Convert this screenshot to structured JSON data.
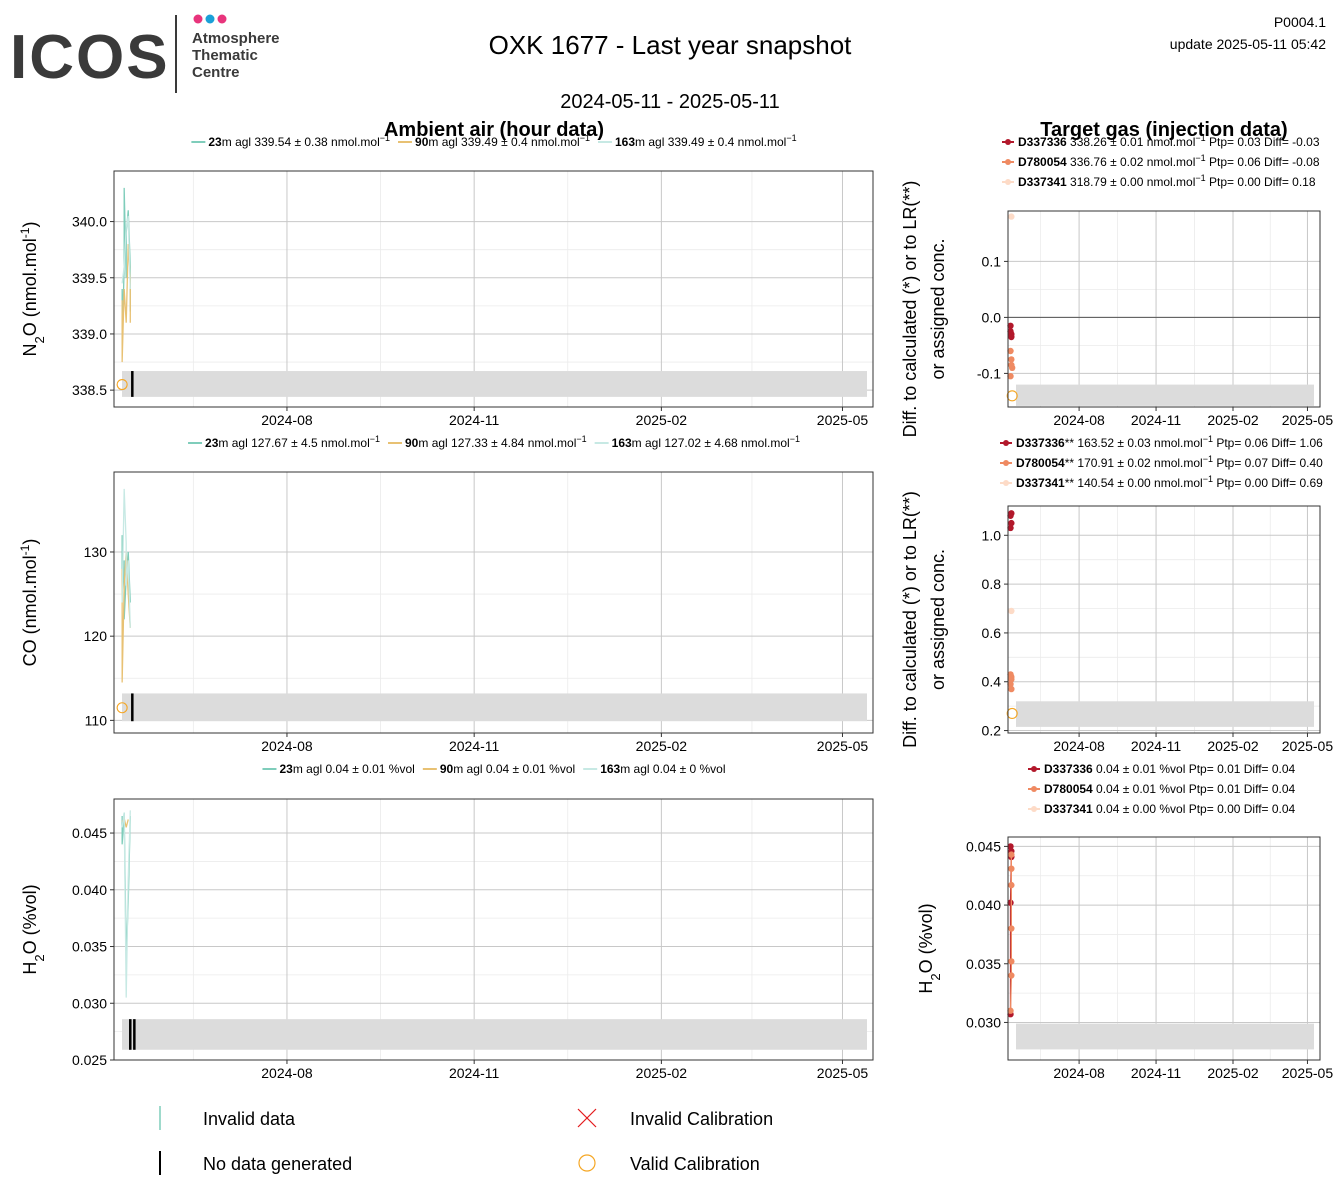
{
  "header": {
    "logo_text": "ICOS",
    "logo_lines": [
      "Atmosphere",
      "Thematic",
      "Centre"
    ],
    "logo_dot_colors": [
      "#e8347c",
      "#1aa0d8",
      "#e8347c"
    ],
    "title": "OXK 1677 - Last year snapshot",
    "date_range": "2024-05-11 - 2025-05-11",
    "code": "P0004.1",
    "update": "update  2025-05-11 05:42"
  },
  "section_titles": {
    "ambient": "Ambient air (hour data)",
    "target": "Target gas (injection data)"
  },
  "colors": {
    "h23": "#7fcdbb",
    "h90": "#e8c173",
    "h163": "#c7e9e4",
    "d337336": "#b2182b",
    "d780054": "#ef8a62",
    "d337341": "#fddbc7",
    "band": "#dcdcdc",
    "valid_cal": "#f5a623",
    "invalid_cal": "#e41a1c"
  },
  "chart_data": [
    {
      "id": "n2o_ambient",
      "type": "line",
      "ylabel_main": "N",
      "ylabel_sub": "2",
      "ylabel_rest": "O (nmol.mol",
      "ylabel_sup": "-1",
      "ylabel_close": ")",
      "ylim": [
        338.35,
        340.45
      ],
      "yticks": [
        338.5,
        339.0,
        339.5,
        340.0
      ],
      "ytick_labels": [
        "338.5",
        "339.0",
        "339.5",
        "340.0"
      ],
      "xlim": [
        "2024-05-08",
        "2025-05-16"
      ],
      "xticks": [
        "2024-08",
        "2024-11",
        "2025-02",
        "2025-05"
      ],
      "legend": [
        {
          "bold": "23",
          "text": "m agl 339.54 ± 0.38 nmol.mol",
          "sup": "−1",
          "color_key": "h23"
        },
        {
          "bold": "90",
          "text": "m agl 339.49 ± 0.4 nmol.mol",
          "sup": "−1",
          "color_key": "h90"
        },
        {
          "bold": "163",
          "text": "m agl 339.49 ± 0.4 nmol.mol",
          "sup": "−1",
          "color_key": "h163"
        }
      ],
      "band": [
        338.44,
        338.67
      ],
      "series": [
        {
          "color_key": "h23",
          "x": [
            "2024-05-12",
            "2024-05-12",
            "2024-05-13",
            "2024-05-13",
            "2024-05-14",
            "2024-05-14",
            "2024-05-15",
            "2024-05-16",
            "2024-05-16"
          ],
          "y": [
            339.4,
            338.9,
            339.6,
            340.3,
            339.5,
            339.9,
            340.1,
            339.6,
            339.2
          ]
        },
        {
          "color_key": "h90",
          "x": [
            "2024-05-12",
            "2024-05-12",
            "2024-05-13",
            "2024-05-14",
            "2024-05-15",
            "2024-05-16",
            "2024-05-16"
          ],
          "y": [
            339.3,
            338.75,
            339.4,
            339.1,
            339.8,
            339.5,
            339.1
          ]
        },
        {
          "color_key": "h163",
          "x": [
            "2024-05-12",
            "2024-05-13",
            "2024-05-14",
            "2024-05-15",
            "2024-05-16"
          ],
          "y": [
            339.45,
            339.6,
            339.95,
            340.05,
            339.4
          ]
        }
      ],
      "valid_cal": [
        {
          "x": "2024-05-12",
          "y": 338.55
        }
      ],
      "no_data": [
        {
          "x": "2024-05-17"
        }
      ]
    },
    {
      "id": "n2o_target",
      "type": "scatter",
      "ylabel_line1": "Diff. to calculated (*) or to LR(**)",
      "ylabel_line2": "or assigned conc.",
      "ylim": [
        -0.16,
        0.19
      ],
      "yticks": [
        -0.1,
        0.0,
        0.1
      ],
      "ytick_labels": [
        "-0.1",
        "0.0",
        "0.1"
      ],
      "xlim": [
        "2024-05-08",
        "2025-05-16"
      ],
      "xticks": [
        "2024-08",
        "2024-11",
        "2025-02",
        "2025-05"
      ],
      "zero_line": true,
      "legend": [
        {
          "bold": "D337336",
          "text": " 338.26 ± 0.01 nmol.mol",
          "sup": "−1",
          "tail": " Ptp= 0.03 Diff= -0.03",
          "color_key": "d337336"
        },
        {
          "bold": "D780054",
          "text": " 336.76 ± 0.02 nmol.mol",
          "sup": "−1",
          "tail": " Ptp= 0.06 Diff= -0.08",
          "color_key": "d780054"
        },
        {
          "bold": "D337341",
          "text": " 318.79 ± 0.00 nmol.mol",
          "sup": "−1",
          "tail": " Ptp= 0.00 Diff= 0.18",
          "color_key": "d337341"
        }
      ],
      "band": [
        -0.158,
        -0.12
      ],
      "series": [
        {
          "name": "D337336",
          "color_key": "d337336",
          "x": [
            "2024-05-11",
            "2024-05-11",
            "2024-05-12",
            "2024-05-12"
          ],
          "y": [
            -0.015,
            -0.025,
            -0.03,
            -0.035
          ]
        },
        {
          "name": "D780054",
          "color_key": "d780054",
          "x": [
            "2024-05-11",
            "2024-05-12",
            "2024-05-12",
            "2024-05-13",
            "2024-05-11"
          ],
          "y": [
            -0.06,
            -0.075,
            -0.085,
            -0.09,
            -0.105
          ]
        },
        {
          "name": "D337341",
          "color_key": "d337341",
          "x": [
            "2024-05-12"
          ],
          "y": [
            0.18
          ]
        }
      ],
      "valid_cal": [
        {
          "x": "2024-05-13",
          "y": -0.14
        }
      ]
    },
    {
      "id": "co_ambient",
      "type": "line",
      "ylabel_main": "CO (nmol.mol",
      "ylabel_sup": "-1",
      "ylabel_close": ")",
      "ylim": [
        108.5,
        139.5
      ],
      "yticks": [
        110,
        120,
        130
      ],
      "ytick_labels": [
        "110",
        "120",
        "130"
      ],
      "xlim": [
        "2024-05-08",
        "2025-05-16"
      ],
      "xticks": [
        "2024-08",
        "2024-11",
        "2025-02",
        "2025-05"
      ],
      "legend": [
        {
          "bold": "23",
          "text": "m agl 127.67 ± 4.5 nmol.mol",
          "sup": "−1",
          "color_key": "h23"
        },
        {
          "bold": "90",
          "text": "m agl 127.33 ± 4.84 nmol.mol",
          "sup": "−1",
          "color_key": "h90"
        },
        {
          "bold": "163",
          "text": "m agl 127.02 ± 4.68 nmol.mol",
          "sup": "−1",
          "color_key": "h163"
        }
      ],
      "band": [
        109.9,
        113.2
      ],
      "series": [
        {
          "color_key": "h23",
          "x": [
            "2024-05-12",
            "2024-05-12",
            "2024-05-13",
            "2024-05-13",
            "2024-05-14",
            "2024-05-15",
            "2024-05-16"
          ],
          "y": [
            132,
            125,
            129,
            122,
            127,
            130,
            124
          ]
        },
        {
          "color_key": "h90",
          "x": [
            "2024-05-12",
            "2024-05-12",
            "2024-05-13",
            "2024-05-14",
            "2024-05-15",
            "2024-05-16"
          ],
          "y": [
            128,
            114.5,
            126,
            130,
            125,
            121
          ]
        },
        {
          "color_key": "h163",
          "x": [
            "2024-05-12",
            "2024-05-13",
            "2024-05-14",
            "2024-05-14",
            "2024-05-15",
            "2024-05-16"
          ],
          "y": [
            124,
            137.5,
            131,
            126,
            129,
            121
          ]
        }
      ],
      "valid_cal": [
        {
          "x": "2024-05-12",
          "y": 111.5
        }
      ],
      "no_data": [
        {
          "x": "2024-05-17"
        }
      ]
    },
    {
      "id": "co_target",
      "type": "scatter",
      "ylabel_line1": "Diff. to calculated (*) or to LR(**)",
      "ylabel_line2": "or assigned conc.",
      "ylim": [
        0.19,
        1.12
      ],
      "yticks": [
        0.2,
        0.4,
        0.6,
        0.8,
        1.0
      ],
      "ytick_labels": [
        "0.2",
        "0.4",
        "0.6",
        "0.8",
        "1.0"
      ],
      "xlim": [
        "2024-05-08",
        "2025-05-16"
      ],
      "xticks": [
        "2024-08",
        "2024-11",
        "2025-02",
        "2025-05"
      ],
      "zero_line": false,
      "legend": [
        {
          "bold": "D337336",
          "text": "** 163.52 ± 0.03 nmol.mol",
          "sup": "−1",
          "tail": " Ptp= 0.06 Diff= 1.06",
          "color_key": "d337336"
        },
        {
          "bold": "D780054",
          "text": "** 170.91 ± 0.02 nmol.mol",
          "sup": "−1",
          "tail": " Ptp= 0.07 Diff= 0.40",
          "color_key": "d780054"
        },
        {
          "bold": "D337341",
          "text": "** 140.54 ± 0.00 nmol.mol",
          "sup": "−1",
          "tail": " Ptp= 0.00 Diff= 0.69",
          "color_key": "d337341"
        }
      ],
      "band": [
        0.215,
        0.32
      ],
      "series": [
        {
          "name": "D337336",
          "color_key": "d337336",
          "x": [
            "2024-05-11",
            "2024-05-12",
            "2024-05-11",
            "2024-05-12"
          ],
          "y": [
            1.08,
            1.09,
            1.03,
            1.05
          ]
        },
        {
          "name": "D780054",
          "color_key": "d780054",
          "x": [
            "2024-05-11",
            "2024-05-12",
            "2024-05-11",
            "2024-05-12",
            "2024-05-12"
          ],
          "y": [
            0.43,
            0.41,
            0.39,
            0.37,
            0.42
          ]
        },
        {
          "name": "D337341",
          "color_key": "d337341",
          "x": [
            "2024-05-12"
          ],
          "y": [
            0.69
          ]
        }
      ],
      "valid_cal": [
        {
          "x": "2024-05-13",
          "y": 0.27
        }
      ]
    },
    {
      "id": "h2o_ambient",
      "type": "line",
      "ylabel_main": "H",
      "ylabel_sub": "2",
      "ylabel_rest": "O (%vol)",
      "ylim": [
        0.025,
        0.048
      ],
      "yticks": [
        0.025,
        0.03,
        0.035,
        0.04,
        0.045
      ],
      "ytick_labels": [
        "0.025",
        "0.030",
        "0.035",
        "0.040",
        "0.045"
      ],
      "xlim": [
        "2024-05-08",
        "2025-05-16"
      ],
      "xticks": [
        "2024-08",
        "2024-11",
        "2025-02",
        "2025-05"
      ],
      "legend": [
        {
          "bold": "23",
          "text": "m agl 0.04 ± 0.01 %vol",
          "sup": "",
          "color_key": "h23"
        },
        {
          "bold": "90",
          "text": "m agl 0.04 ± 0.01 %vol",
          "sup": "",
          "color_key": "h90"
        },
        {
          "bold": "163",
          "text": "m agl 0.04 ± 0 %vol",
          "sup": "",
          "color_key": "h163"
        }
      ],
      "band": [
        0.0259,
        0.0286
      ],
      "series": [
        {
          "color_key": "h23",
          "x": [
            "2024-05-12",
            "2024-05-12",
            "2024-05-13",
            "2024-05-14",
            "2024-05-15",
            "2024-05-16"
          ],
          "y": [
            0.0465,
            0.044,
            0.0468,
            0.034,
            0.039,
            0.0465
          ]
        },
        {
          "color_key": "h90",
          "x": [
            "2024-05-12",
            "2024-05-13",
            "2024-05-14",
            "2024-05-15"
          ],
          "y": [
            0.046,
            0.0463,
            0.0455,
            0.0462
          ]
        },
        {
          "color_key": "h163",
          "x": [
            "2024-05-12",
            "2024-05-13",
            "2024-05-14",
            "2024-05-15",
            "2024-05-16"
          ],
          "y": [
            0.0455,
            0.0468,
            0.0305,
            0.041,
            0.047
          ]
        }
      ],
      "no_data": [
        {
          "x": "2024-05-16"
        },
        {
          "x": "2024-05-18"
        }
      ]
    },
    {
      "id": "h2o_target",
      "type": "line",
      "ylabel_main": "H",
      "ylabel_sub": "2",
      "ylabel_rest": "O (%vol)",
      "ylim": [
        0.0268,
        0.0458
      ],
      "yticks": [
        0.03,
        0.035,
        0.04,
        0.045
      ],
      "ytick_labels": [
        "0.030",
        "0.035",
        "0.040",
        "0.045"
      ],
      "xlim": [
        "2024-05-08",
        "2025-05-16"
      ],
      "xticks": [
        "2024-08",
        "2024-11",
        "2025-02",
        "2025-05"
      ],
      "zero_line": false,
      "legend": [
        {
          "bold": "D337336",
          "text": " 0.04 ± 0.01 %vol",
          "sup": "",
          "tail": " Ptp= 0.01 Diff= 0.04",
          "color_key": "d337336"
        },
        {
          "bold": "D780054",
          "text": " 0.04 ± 0.01 %vol",
          "sup": "",
          "tail": " Ptp= 0.01 Diff= 0.04",
          "color_key": "d780054"
        },
        {
          "bold": "D337341",
          "text": " 0.04 ± 0.00 %vol",
          "sup": "",
          "tail": " Ptp= 0.00 Diff= 0.04",
          "color_key": "d337341"
        }
      ],
      "band": [
        0.0277,
        0.0299
      ],
      "series": [
        {
          "name": "D337336",
          "color_key": "d337336",
          "connected": true,
          "x": [
            "2024-05-11",
            "2024-05-12",
            "2024-05-12",
            "2024-05-11",
            "2024-05-11"
          ],
          "y": [
            0.045,
            0.0446,
            0.0441,
            0.0402,
            0.0307
          ]
        },
        {
          "name": "D780054",
          "color_key": "d780054",
          "connected": true,
          "x": [
            "2024-05-12",
            "2024-05-12",
            "2024-05-12",
            "2024-05-12",
            "2024-05-12",
            "2024-05-12",
            "2024-05-11"
          ],
          "y": [
            0.0443,
            0.0431,
            0.0417,
            0.038,
            0.0352,
            0.034,
            0.031
          ]
        },
        {
          "name": "D337341",
          "color_key": "d337341",
          "connected": false,
          "x": [],
          "y": []
        }
      ]
    }
  ],
  "bottom_legend": {
    "invalid_data": "Invalid data",
    "no_data": "No data generated",
    "invalid_cal": "Invalid Calibration",
    "valid_cal": "Valid Calibration"
  }
}
